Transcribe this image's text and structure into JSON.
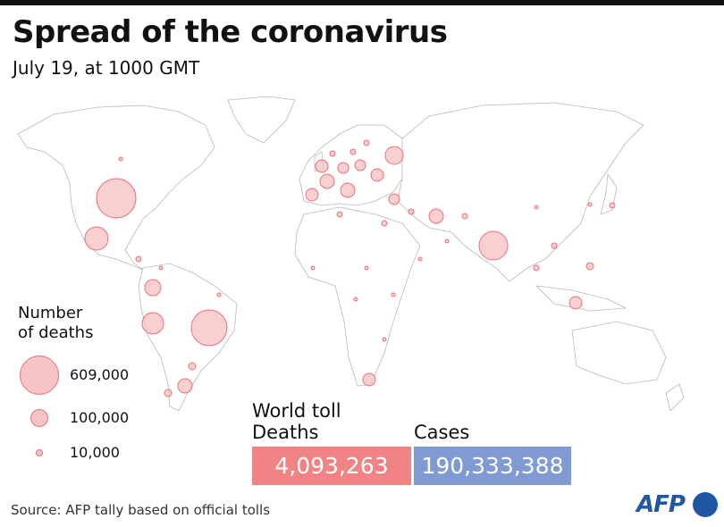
{
  "header": {
    "title": "Spread of the coronavirus",
    "subtitle": "July 19, at 1000 GMT"
  },
  "legend": {
    "title_line1": "Number",
    "title_line2": "of deaths",
    "items": [
      {
        "label": "609,000",
        "value": 609000
      },
      {
        "label": "100,000",
        "value": 100000
      },
      {
        "label": "10,000",
        "value": 10000
      }
    ]
  },
  "world_toll": {
    "title": "World toll",
    "deaths_label": "Deaths",
    "deaths_value": "4,093,263",
    "cases_label": "Cases",
    "cases_value": "190,333,388"
  },
  "colors": {
    "bubble_fill": "#f6c4c4",
    "bubble_stroke": "#ec6f78",
    "deaths_box": "#f08383",
    "cases_box": "#7f9bd2",
    "brand": "#1f57a5"
  },
  "footer": {
    "source": "Source: AFP tally based on official tolls",
    "logo": "AFP"
  }
}
